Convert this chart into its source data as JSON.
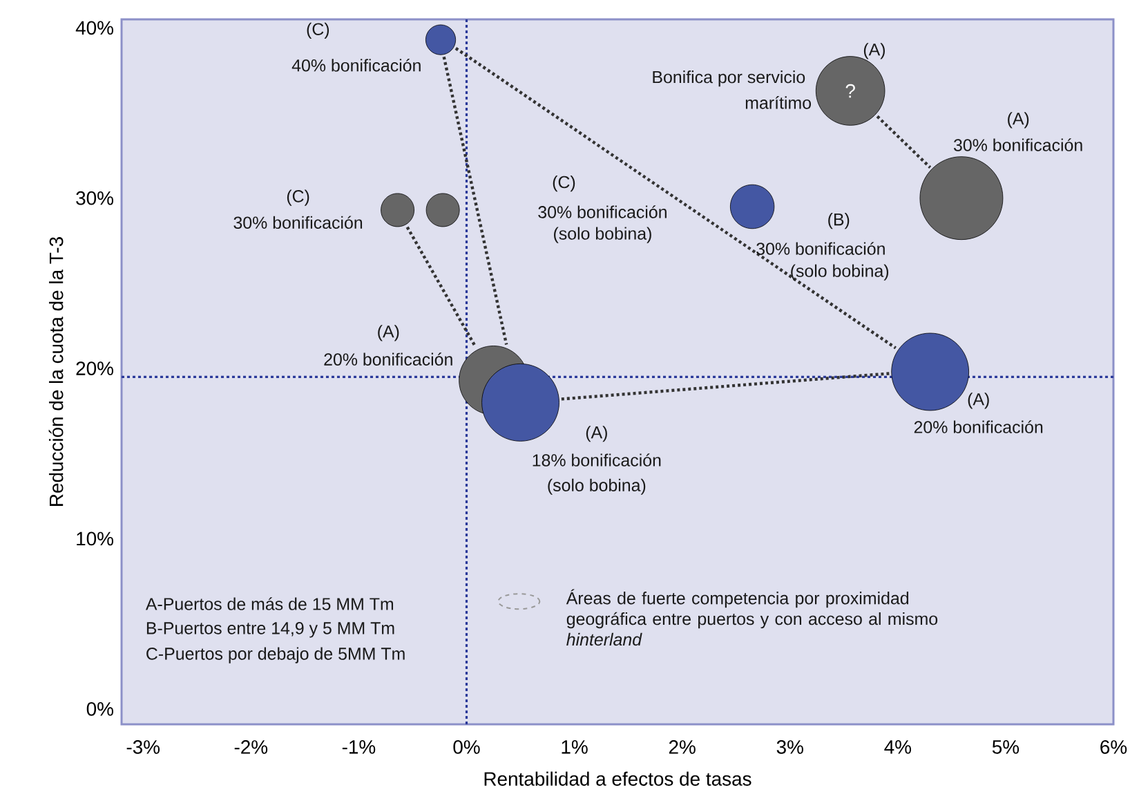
{
  "chart_data": {
    "type": "bubble",
    "xlabel": "Rentabilidad a efectos de tasas",
    "ylabel": "Reducción de la cuota de la T-3",
    "xlim": [
      -3.2,
      6
    ],
    "ylim": [
      -0.9,
      40.5
    ],
    "xticks": [
      {
        "value": -3,
        "label": "-3%"
      },
      {
        "value": -2,
        "label": "-2%"
      },
      {
        "value": -1,
        "label": "-1%"
      },
      {
        "value": 0,
        "label": "0%"
      },
      {
        "value": 1,
        "label": "1%"
      },
      {
        "value": 2,
        "label": "2%"
      },
      {
        "value": 3,
        "label": "3%"
      },
      {
        "value": 4,
        "label": "4%"
      },
      {
        "value": 5,
        "label": "5%"
      },
      {
        "value": 6,
        "label": "6%"
      }
    ],
    "yticks": [
      {
        "value": 0,
        "label": "0%"
      },
      {
        "value": 10,
        "label": "10%"
      },
      {
        "value": 20,
        "label": "20%"
      },
      {
        "value": 30,
        "label": "30%"
      },
      {
        "value": 40,
        "label": "40%"
      }
    ],
    "grid": false,
    "ref_lines": [
      {
        "axis": "x",
        "value": 0,
        "color": "#2b3a9a",
        "line_style": "dotted"
      },
      {
        "axis": "y",
        "value": 19.5,
        "color": "#2b3a9a",
        "line_style": "dotted"
      }
    ],
    "series": [
      {
        "x": [
          -0.24,
          -0.64,
          -0.22,
          2.65,
          3.56,
          4.59,
          4.3,
          0.25,
          0.5
        ],
        "values": [
          39.3,
          29.3,
          29.3,
          29.5,
          36.3,
          30.0,
          19.8,
          19.3,
          18.0
        ],
        "sizes": [
          0.13,
          0.16,
          0.16,
          0.28,
          0.69,
          1,
          0.87,
          0.69,
          0.87
        ],
        "colors": [
          "#4457a3",
          "#666666",
          "#666666",
          "#4457a3",
          "#666666",
          "#666666",
          "#4457a3",
          "#666666",
          "#4457a3"
        ],
        "value_labels": [
          null,
          null,
          null,
          null,
          "?",
          null,
          null,
          null,
          null
        ]
      },
      {
        "type": "line",
        "x": [
          3.81,
          4.3
        ],
        "values": [
          34.8,
          31.8
        ],
        "color": "#333333",
        "line_style": "dotted"
      },
      {
        "type": "line",
        "x": [
          -0.1,
          3.98
        ],
        "values": [
          38.8,
          21.2
        ],
        "color": "#333333",
        "line_style": "dotted"
      },
      {
        "type": "line",
        "x": [
          0.88,
          3.92
        ],
        "values": [
          18.2,
          19.7
        ],
        "color": "#333333",
        "line_style": "dotted"
      },
      {
        "type": "line",
        "x": [
          -0.21,
          0.37
        ],
        "values": [
          38.3,
          21.4
        ],
        "color": "#333333",
        "line_style": "dotted"
      },
      {
        "type": "line",
        "x": [
          -0.55,
          0.08
        ],
        "values": [
          28.3,
          21.3
        ],
        "color": "#333333",
        "line_style": "dotted"
      }
    ],
    "annotations": [
      "(C)",
      "40% bonificación",
      "(A)",
      "Bonifica por servicio",
      "marítimo",
      "(A)",
      "30% bonificación",
      "(C)",
      "30% bonificación",
      "(C)",
      "30% bonificación",
      "(solo bobina)",
      "(B)",
      "30% bonificación",
      "(solo bobina)",
      "(A)",
      "20% bonificación",
      "(A)",
      "20% bonificación",
      "(A)",
      "18% bonificación",
      "(solo bobina)",
      "A-Puertos de más de 15 MM Tm",
      "B-Puertos entre 14,9 y 5 MM Tm",
      "C-Puertos por debajo de 5MM Tm",
      "Áreas de fuerte competencia por proximidad geográfica entre puertos y con acceso al mismo *hinterland*"
    ]
  }
}
